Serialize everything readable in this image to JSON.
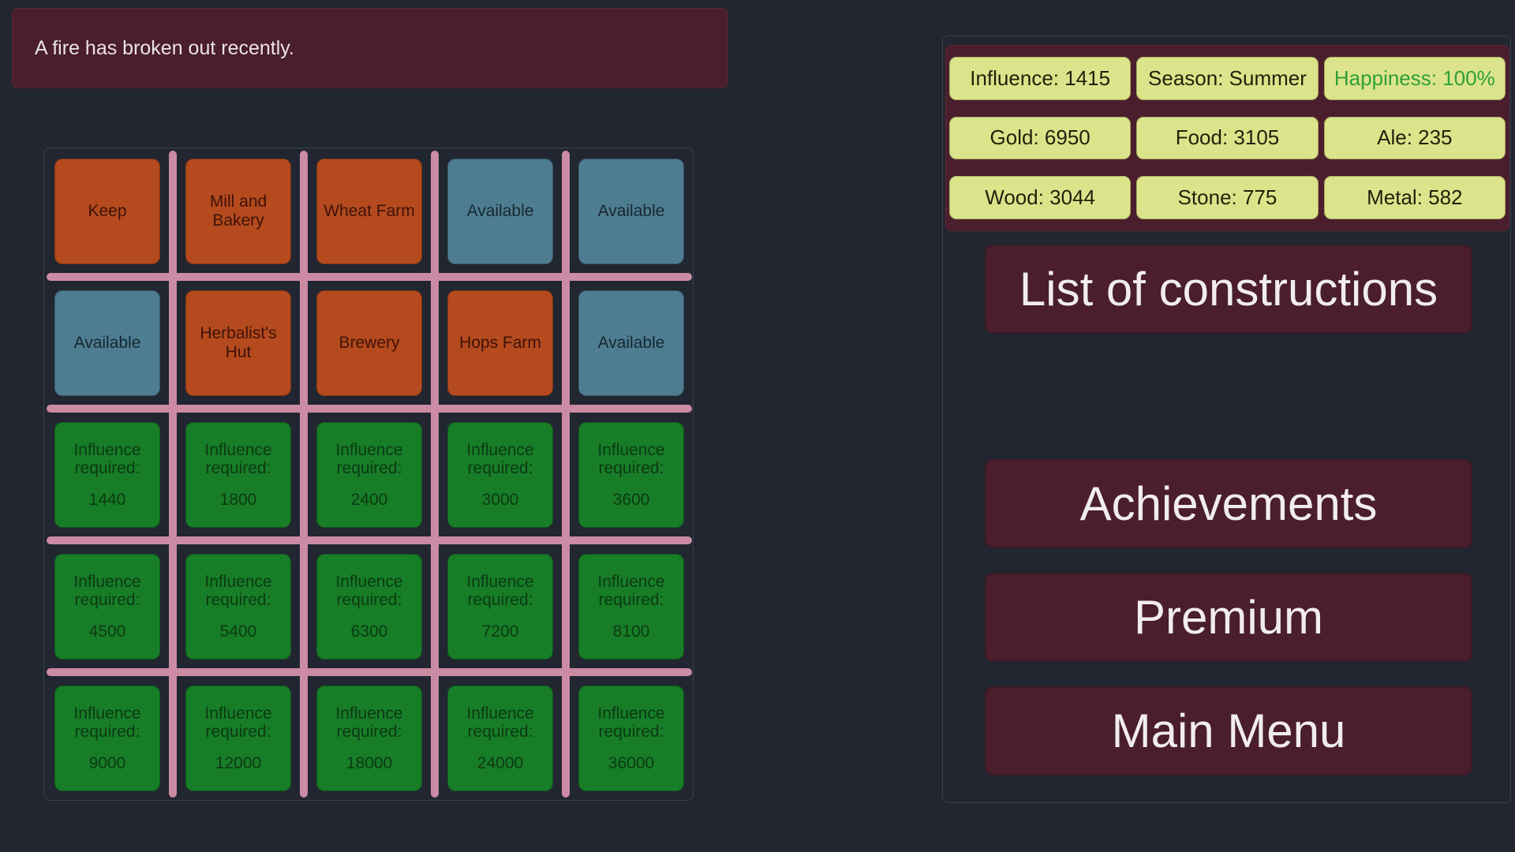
{
  "notification": {
    "message": "A fire has broken out recently."
  },
  "grid": {
    "tiles": [
      {
        "kind": "building",
        "label": "Keep"
      },
      {
        "kind": "building",
        "label": "Mill and Bakery"
      },
      {
        "kind": "building",
        "label": "Wheat Farm"
      },
      {
        "kind": "available",
        "label": "Available"
      },
      {
        "kind": "available",
        "label": "Available"
      },
      {
        "kind": "available",
        "label": "Available"
      },
      {
        "kind": "building",
        "label": "Herbalist's Hut"
      },
      {
        "kind": "building",
        "label": "Brewery"
      },
      {
        "kind": "building",
        "label": "Hops Farm"
      },
      {
        "kind": "available",
        "label": "Available"
      },
      {
        "kind": "locked",
        "label": "Influence required:",
        "value": "1440"
      },
      {
        "kind": "locked",
        "label": "Influence required:",
        "value": "1800"
      },
      {
        "kind": "locked",
        "label": "Influence required:",
        "value": "2400"
      },
      {
        "kind": "locked",
        "label": "Influence required:",
        "value": "3000"
      },
      {
        "kind": "locked",
        "label": "Influence required:",
        "value": "3600"
      },
      {
        "kind": "locked",
        "label": "Influence required:",
        "value": "4500"
      },
      {
        "kind": "locked",
        "label": "Influence required:",
        "value": "5400"
      },
      {
        "kind": "locked",
        "label": "Influence required:",
        "value": "6300"
      },
      {
        "kind": "locked",
        "label": "Influence required:",
        "value": "7200"
      },
      {
        "kind": "locked",
        "label": "Influence required:",
        "value": "8100"
      },
      {
        "kind": "locked",
        "label": "Influence required:",
        "value": "9000"
      },
      {
        "kind": "locked",
        "label": "Influence required:",
        "value": "12000"
      },
      {
        "kind": "locked",
        "label": "Influence required:",
        "value": "18000"
      },
      {
        "kind": "locked",
        "label": "Influence required:",
        "value": "24000"
      },
      {
        "kind": "locked",
        "label": "Influence required:",
        "value": "36000"
      }
    ]
  },
  "status_bar": {
    "influence": "Influence: 1415",
    "season": "Season: Summer",
    "happiness": "Happiness: 100%",
    "gold": "Gold: 6950",
    "food": "Food: 3105",
    "ale": "Ale: 235",
    "wood": "Wood: 3044",
    "stone": "Stone: 775",
    "metal": "Metal: 582"
  },
  "menu": {
    "list_of_constructions": "List of constructions",
    "achievements": "Achievements",
    "premium": "Premium",
    "main_menu": "Main Menu"
  },
  "colors": {
    "background": "#212631",
    "panel_maroon": "#4a1e2c",
    "tile_building_orange": "#b44a1d",
    "tile_available_blue": "#4e7d92",
    "tile_locked_green": "#177d27",
    "grid_line_pink": "#cb8ba4",
    "status_cell_yellow": "#dce48b",
    "happiness_green": "#2f9f38",
    "button_text": "#f1ecef"
  }
}
